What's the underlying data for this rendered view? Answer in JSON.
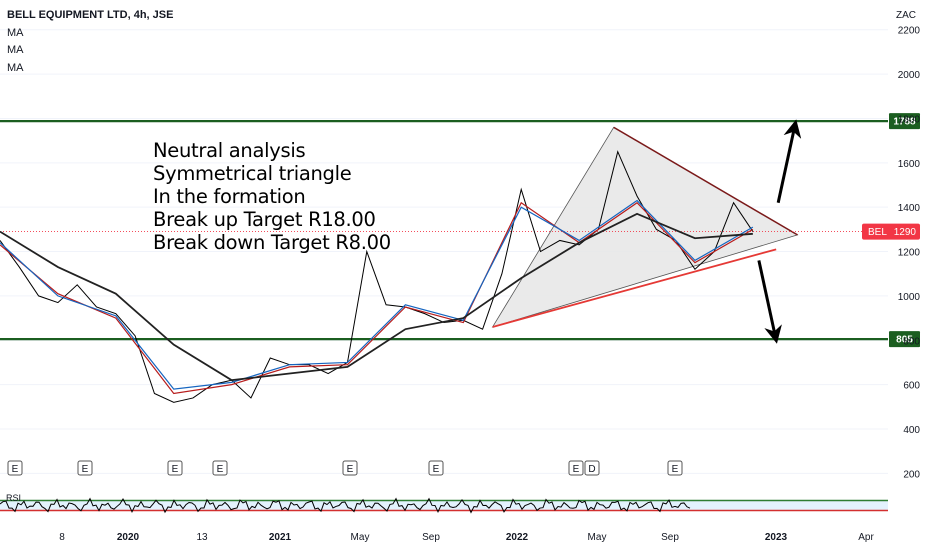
{
  "header": {
    "symbol_line": "BELL EQUIPMENT LTD, 4h, JSE",
    "indicators": [
      "MA",
      "MA",
      "MA"
    ]
  },
  "currency": "ZAC",
  "annotation_lines": [
    "Neutral analysis",
    "Symmetrical triangle",
    "In the formation",
    "Break up Target R18.00",
    "Break down Target R8.00"
  ],
  "chart_data": {
    "type": "line",
    "title": "BELL EQUIPMENT LTD, 4h, JSE",
    "y_axis": {
      "unit": "ZAC",
      "ticks": [
        200,
        400,
        600,
        800,
        1000,
        1200,
        1400,
        1600,
        1800,
        2000,
        2200
      ],
      "range": [
        170,
        2280
      ]
    },
    "x_axis": {
      "ticks": [
        "8",
        "2020",
        "13",
        "2021",
        "May",
        "Sep",
        "2022",
        "May",
        "Sep",
        "2023",
        "Apr"
      ],
      "range": [
        "2019-07",
        "2023-05"
      ]
    },
    "horizontal_levels": [
      {
        "value": 1788,
        "label": "1788",
        "color": "#1b5e20"
      },
      {
        "value": 805,
        "label": "805",
        "color": "#1b5e20"
      }
    ],
    "last_price": {
      "label": "BEL",
      "value": 1290,
      "color": "#f23645"
    },
    "price_series": {
      "x": [
        "2019-07",
        "2019-08",
        "2019-09",
        "2019-10",
        "2019-11",
        "2019-12",
        "2020-01",
        "2020-02",
        "2020-03",
        "2020-04",
        "2020-05",
        "2020-06",
        "2020-07",
        "2020-08",
        "2020-09",
        "2020-10",
        "2020-11",
        "2020-12",
        "2021-01",
        "2021-02",
        "2021-03",
        "2021-04",
        "2021-05",
        "2021-06",
        "2021-07",
        "2021-08",
        "2021-09",
        "2021-10",
        "2021-11",
        "2021-12",
        "2022-01",
        "2022-02",
        "2022-03",
        "2022-04",
        "2022-05",
        "2022-06",
        "2022-07",
        "2022-08",
        "2022-09",
        "2022-10"
      ],
      "close": [
        1250,
        1130,
        1000,
        970,
        1050,
        950,
        920,
        820,
        560,
        520,
        540,
        600,
        620,
        540,
        720,
        690,
        690,
        650,
        700,
        1200,
        960,
        950,
        920,
        880,
        890,
        850,
        1100,
        1480,
        1200,
        1250,
        1230,
        1300,
        1650,
        1450,
        1300,
        1250,
        1120,
        1200,
        1420,
        1290
      ]
    },
    "moving_averages": [
      {
        "name": "MA",
        "color": "#b71c1c",
        "x": [
          "2019-07",
          "2019-10",
          "2020-01",
          "2020-04",
          "2020-07",
          "2020-10",
          "2021-01",
          "2021-04",
          "2021-07",
          "2021-10",
          "2022-01",
          "2022-04",
          "2022-07",
          "2022-10"
        ],
        "values": [
          1230,
          1010,
          900,
          560,
          600,
          680,
          690,
          950,
          880,
          1420,
          1240,
          1420,
          1150,
          1300
        ]
      },
      {
        "name": "MA",
        "color": "#1565c0",
        "x": [
          "2019-07",
          "2019-10",
          "2020-01",
          "2020-04",
          "2020-07",
          "2020-10",
          "2021-01",
          "2021-04",
          "2021-07",
          "2021-10",
          "2022-01",
          "2022-04",
          "2022-07",
          "2022-10"
        ],
        "values": [
          1240,
          1000,
          910,
          580,
          610,
          690,
          700,
          960,
          890,
          1400,
          1250,
          1430,
          1160,
          1310
        ]
      },
      {
        "name": "MA",
        "color": "#222222",
        "x": [
          "2019-07",
          "2019-10",
          "2020-01",
          "2020-04",
          "2020-07",
          "2020-10",
          "2021-01",
          "2021-04",
          "2021-07",
          "2021-10",
          "2022-01",
          "2022-04",
          "2022-07",
          "2022-10"
        ],
        "values": [
          1290,
          1130,
          1010,
          780,
          620,
          650,
          680,
          850,
          900,
          1080,
          1240,
          1370,
          1260,
          1280
        ]
      }
    ],
    "triangle": {
      "apex": {
        "x": "2022-12",
        "value": 1275
      },
      "top": {
        "x": "2022-03",
        "value": 1760
      },
      "bottom": {
        "x": "2021-08",
        "value": 860
      },
      "lower_trend_end": {
        "x": "2022-11",
        "value": 1210
      }
    },
    "arrows": [
      {
        "direction": "up",
        "from": {
          "x": "2022-11",
          "value": 1420
        },
        "to": {
          "x": "2022-12",
          "value": 1780
        }
      },
      {
        "direction": "down",
        "from": {
          "x": "2022-10",
          "value": 1160
        },
        "to": {
          "x": "2022-11",
          "value": 800
        }
      }
    ],
    "earnings_markers": [
      "E",
      "E",
      "E",
      "E",
      "E",
      "E",
      "E",
      "D",
      "E"
    ],
    "rsi": {
      "label": "RSI",
      "upper": 70,
      "lower": 30
    }
  }
}
